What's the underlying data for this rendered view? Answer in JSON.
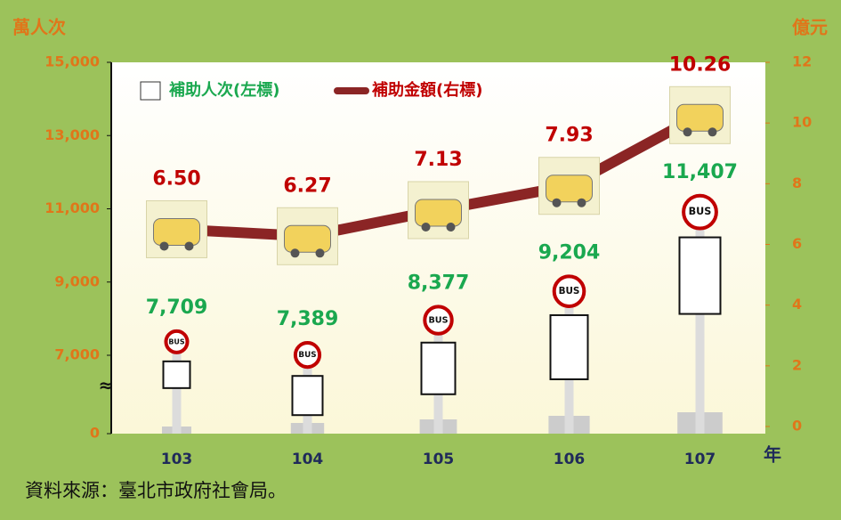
{
  "chart_data": {
    "type": "bar_line",
    "y_axis_label": "萬人次",
    "y2_axis_label": "億元",
    "x_axis_label": "年",
    "source": "資料來源：臺北市政府社會局。",
    "axis_break_symbol": "≈",
    "categories": [
      "103",
      "104",
      "105",
      "106",
      "107"
    ],
    "series": [
      {
        "name": "補助人次(左標)",
        "type": "bar",
        "color": "#1aa84f",
        "values": [
          7709,
          7389,
          8377,
          9204,
          11407
        ],
        "value_labels": [
          "7,709",
          "7,389",
          "8,377",
          "9,204",
          "11,407"
        ]
      },
      {
        "name": "補助金額(右標)",
        "type": "line",
        "axis": "y2",
        "color": "#c00000",
        "values": [
          6.5,
          6.27,
          7.13,
          7.93,
          10.26
        ],
        "value_labels": [
          "6.50",
          "6.27",
          "7.13",
          "7.93",
          "10.26"
        ]
      }
    ],
    "ylim": [
      0,
      15000
    ],
    "yticks": [
      0,
      {
        "value": 7000,
        "label": "7,000"
      },
      {
        "value": 9000,
        "label": "9,000"
      },
      {
        "value": 11000,
        "label": "11,000"
      },
      {
        "value": 13000,
        "label": "13,000"
      },
      {
        "value": 15000,
        "label": "15,000"
      }
    ],
    "y2lim": [
      0,
      12
    ],
    "y2ticks": [
      0,
      2,
      4,
      6,
      8,
      10,
      12
    ]
  }
}
